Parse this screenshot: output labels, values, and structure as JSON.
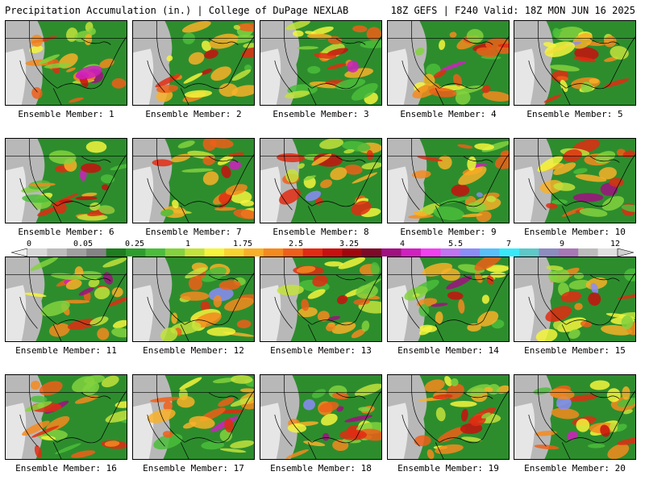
{
  "header": {
    "left": "Precipitation Accumulation (in.) | College of DuPage NEXLAB",
    "right": "18Z GEFS | F240 Valid: 18Z MON JUN 16 2025"
  },
  "member_label_prefix": "Ensemble Member: ",
  "members": [
    1,
    2,
    3,
    4,
    5,
    6,
    7,
    8,
    9,
    10,
    11,
    12,
    13,
    14,
    15,
    16,
    17,
    18,
    19,
    20
  ],
  "legend": {
    "tick_labels": [
      "0",
      "0.05",
      "0.25",
      "1",
      "1.75",
      "2.5",
      "3.25",
      "4",
      "5.5",
      "7",
      "9",
      "12"
    ],
    "colors": [
      "#d8d8d8",
      "#bcbcbc",
      "#a0a0a0",
      "#848484",
      "#1e7d1e",
      "#2d9d2d",
      "#4bbd3b",
      "#83d23e",
      "#c3e23c",
      "#f5f53c",
      "#f8d430",
      "#f8b028",
      "#f48a1e",
      "#ef5f19",
      "#e22b13",
      "#c8100e",
      "#a0060c",
      "#7c0a28",
      "#a01080",
      "#d020c0",
      "#f040f0",
      "#c074f0",
      "#8c8cf8",
      "#58c0f8",
      "#38e8f8",
      "#5ec8c8",
      "#8c8cc0",
      "#a878b4",
      "#bcbcbc",
      "#e0e0e0"
    ]
  }
}
